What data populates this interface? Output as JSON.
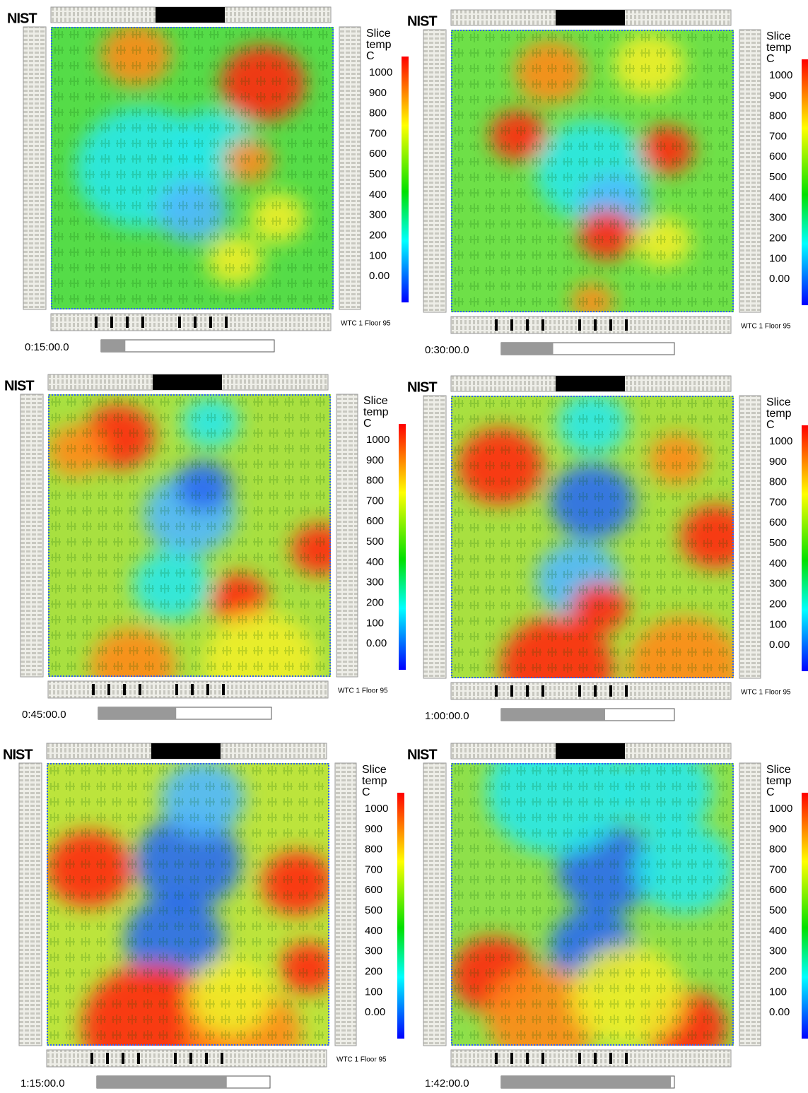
{
  "logo": "NIST",
  "legend": {
    "title_lines": [
      "Slice",
      "temp",
      "C"
    ],
    "range": [
      -128,
      1080
    ],
    "ticks": [
      1000,
      900,
      800,
      700,
      600,
      500,
      400,
      300,
      200,
      100,
      {
        "value": 0,
        "label": "0.00"
      }
    ]
  },
  "panels": [
    {
      "time": "0:15:00.0",
      "floor_label": "WTC 1 Floor 95",
      "progress": 0.14
    },
    {
      "time": "0:30:00.0",
      "floor_label": "WTC 1 Floor 95",
      "progress": 0.3
    },
    {
      "time": "0:45:00.0",
      "floor_label": "WTC 1 Floor 95",
      "progress": 0.45
    },
    {
      "time": "1:00:00.0",
      "floor_label": "WTC 1 Floor 95",
      "progress": 0.6
    },
    {
      "time": "1:15:00.0",
      "floor_label": "WTC 1 Floor 95",
      "progress": 0.75
    },
    {
      "time": "1:42:00.0",
      "progress": 0.98
    }
  ]
}
